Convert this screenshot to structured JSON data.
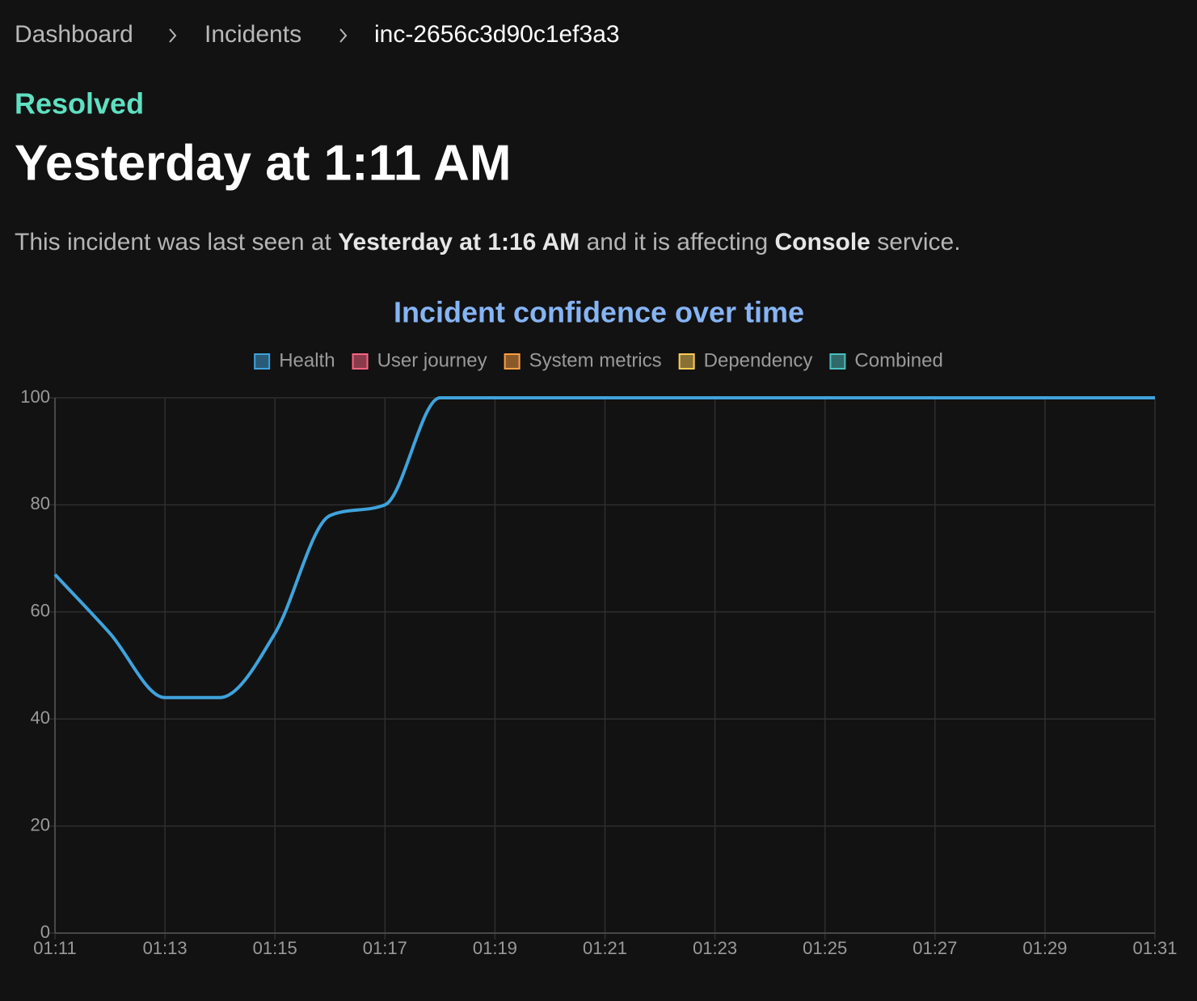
{
  "breadcrumb": [
    "Dashboard",
    "Incidents",
    "inc-2656c3d90c1ef3a3"
  ],
  "status": "Resolved",
  "title": "Yesterday at 1:11 AM",
  "description": [
    "This incident was last seen at ",
    "Yesterday at 1:16 AM",
    " and it is affecting ",
    "Console",
    " service."
  ],
  "chart_data": {
    "type": "line",
    "title": "Incident confidence over time",
    "categories": [
      "01:11",
      null,
      "01:13",
      null,
      "01:15",
      null,
      "01:17",
      null,
      "01:19",
      null,
      "01:21",
      null,
      "01:23",
      null,
      "01:25",
      null,
      "01:27",
      null,
      "01:29",
      null,
      "01:31"
    ],
    "series": [
      {
        "name": "Health",
        "color": "#3fa3dc",
        "values": [
          67,
          56,
          44,
          44,
          56,
          78,
          80,
          100,
          100,
          100,
          100,
          100,
          100,
          100,
          100,
          100,
          100,
          100,
          100,
          100,
          100
        ]
      },
      {
        "name": "User journey",
        "color": "#ff6384",
        "values": [
          null,
          null,
          null,
          null,
          null,
          null,
          null,
          null,
          null,
          null,
          null,
          null,
          null,
          null,
          null,
          null,
          null,
          null,
          null,
          null,
          null
        ]
      },
      {
        "name": "System metrics",
        "color": "#ff9f40",
        "values": [
          null,
          null,
          null,
          null,
          null,
          null,
          null,
          null,
          null,
          null,
          null,
          null,
          null,
          null,
          null,
          null,
          null,
          null,
          null,
          null,
          null
        ]
      },
      {
        "name": "Dependency",
        "color": "#ffcd56",
        "values": [
          null,
          null,
          null,
          null,
          null,
          null,
          null,
          null,
          null,
          null,
          null,
          null,
          null,
          null,
          null,
          null,
          null,
          null,
          null,
          null,
          null
        ]
      },
      {
        "name": "Combined",
        "color": "#4bc0c0",
        "values": [
          null,
          null,
          null,
          null,
          null,
          null,
          null,
          null,
          null,
          null,
          null,
          null,
          null,
          null,
          null,
          null,
          null,
          null,
          null,
          null,
          null
        ]
      }
    ],
    "ylim": [
      0,
      100
    ],
    "yticks": [
      0,
      20,
      40,
      60,
      80,
      100
    ],
    "grid": true,
    "legend": "top"
  }
}
